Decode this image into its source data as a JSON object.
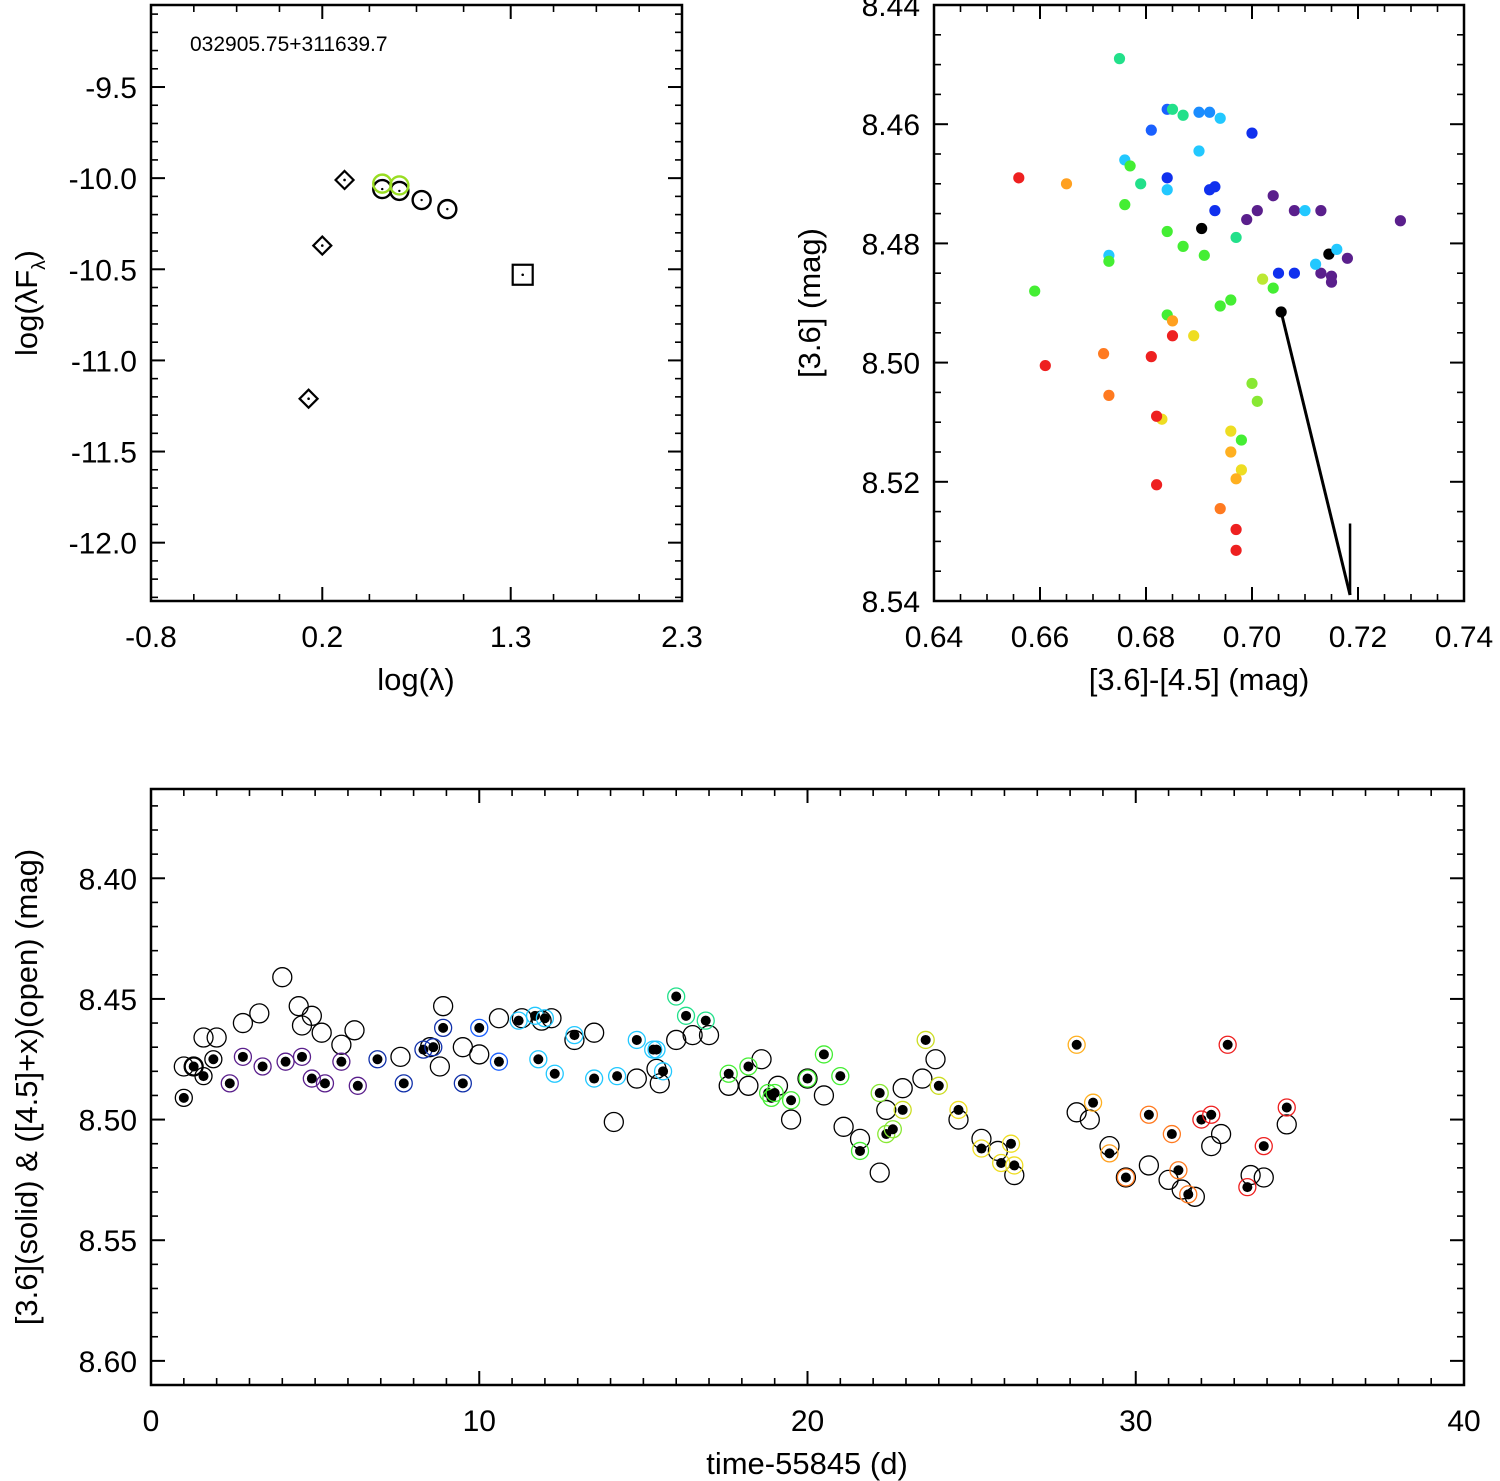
{
  "chart_data": [
    {
      "id": "sed",
      "type": "scatter",
      "title": "",
      "annotation": "032905.75+311639.7",
      "xlabel": "log(λ)",
      "ylabel_main": "log(λF",
      "ylabel_sub": "λ",
      "ylabel_close": ")",
      "xlim": [
        -0.8,
        2.3
      ],
      "ylim": [
        -12.32,
        -9.05
      ],
      "xticks": [
        -0.8,
        0.2,
        1.3,
        2.3
      ],
      "xtick_labels": [
        "-0.8",
        "0.2",
        "1.3",
        "2.3"
      ],
      "yticks": [
        -9.5,
        -10.0,
        -10.5,
        -11.0,
        -11.5,
        -12.0
      ],
      "ytick_labels": [
        "-9.5",
        "-10.0",
        "-10.5",
        "-11.0",
        "-11.5",
        "-12.0"
      ],
      "series": [
        {
          "name": "diamonds",
          "marker": "diamond",
          "x": [
            0.12,
            0.2,
            0.33
          ],
          "y": [
            -11.21,
            -10.37,
            -10.01
          ]
        },
        {
          "name": "open circles",
          "marker": "circle",
          "x": [
            0.55,
            0.65,
            0.78,
            0.93
          ],
          "y": [
            -10.06,
            -10.07,
            -10.12,
            -10.17
          ]
        },
        {
          "name": "green circles",
          "marker": "circle",
          "color": "#99dd22",
          "x": [
            0.55,
            0.65
          ],
          "y": [
            -10.03,
            -10.04
          ]
        },
        {
          "name": "square",
          "marker": "square",
          "x": [
            1.37
          ],
          "y": [
            -10.53
          ]
        }
      ]
    },
    {
      "id": "cmd",
      "type": "scatter",
      "title": "",
      "xlabel": "[3.6]-[4.5] (mag)",
      "ylabel": "[3.6] (mag)",
      "xlim": [
        0.64,
        0.74
      ],
      "ylim": [
        8.54,
        8.44
      ],
      "xticks": [
        0.64,
        0.66,
        0.68,
        0.7,
        0.72,
        0.74
      ],
      "xtick_labels": [
        "0.64",
        "0.66",
        "0.68",
        "0.70",
        "0.72",
        "0.74"
      ],
      "yticks": [
        8.44,
        8.46,
        8.48,
        8.5,
        8.52,
        8.54
      ],
      "ytick_labels": [
        "8.44",
        "8.46",
        "8.48",
        "8.50",
        "8.52",
        "8.54"
      ],
      "reddening_vector": {
        "from": [
          0.7055,
          8.4915
        ],
        "to": [
          0.7185,
          8.539
        ]
      },
      "reference_line": {
        "x": 0.7185,
        "y": [
          8.527,
          8.539
        ]
      },
      "points": [
        [
          0.7055,
          8.4915,
          "#000000"
        ],
        [
          0.6905,
          8.4775,
          "#000000"
        ],
        [
          0.7145,
          8.4818,
          "#000000"
        ],
        [
          0.728,
          8.4762,
          "#5a1f8c"
        ],
        [
          0.718,
          8.4825,
          "#5a1f8c"
        ],
        [
          0.715,
          8.4855,
          "#5a1f8c"
        ],
        [
          0.715,
          8.4865,
          "#5a1f8c"
        ],
        [
          0.708,
          8.4745,
          "#5a1f8c"
        ],
        [
          0.713,
          8.4745,
          "#5a1f8c"
        ],
        [
          0.704,
          8.472,
          "#5a1f8c"
        ],
        [
          0.701,
          8.4745,
          "#5a1f8c"
        ],
        [
          0.699,
          8.476,
          "#5a1f8c"
        ],
        [
          0.713,
          8.485,
          "#5a1f8c"
        ],
        [
          0.684,
          8.469,
          "#1030ee"
        ],
        [
          0.692,
          8.471,
          "#1030ee"
        ],
        [
          0.693,
          8.4705,
          "#1030ee"
        ],
        [
          0.693,
          8.4745,
          "#1030ee"
        ],
        [
          0.705,
          8.485,
          "#1030ee"
        ],
        [
          0.708,
          8.485,
          "#1030ee"
        ],
        [
          0.7,
          8.4615,
          "#1030ee"
        ],
        [
          0.681,
          8.461,
          "#1a60ff"
        ],
        [
          0.684,
          8.4575,
          "#1a60ff"
        ],
        [
          0.69,
          8.458,
          "#1a8cff"
        ],
        [
          0.692,
          8.458,
          "#1a8cff"
        ],
        [
          0.694,
          8.459,
          "#22c8ff"
        ],
        [
          0.69,
          8.4645,
          "#22c8ff"
        ],
        [
          0.684,
          8.471,
          "#22c8ff"
        ],
        [
          0.676,
          8.466,
          "#22c8ff"
        ],
        [
          0.673,
          8.482,
          "#22c8ff"
        ],
        [
          0.71,
          8.4745,
          "#22c8ff"
        ],
        [
          0.716,
          8.481,
          "#22c8ff"
        ],
        [
          0.712,
          8.4835,
          "#22c8ff"
        ],
        [
          0.675,
          8.449,
          "#22e08a"
        ],
        [
          0.685,
          8.4575,
          "#22e08a"
        ],
        [
          0.687,
          8.4585,
          "#22e08a"
        ],
        [
          0.679,
          8.47,
          "#22e08a"
        ],
        [
          0.697,
          8.479,
          "#22e08a"
        ],
        [
          0.677,
          8.467,
          "#44ee33"
        ],
        [
          0.676,
          8.4735,
          "#44ee33"
        ],
        [
          0.684,
          8.478,
          "#44ee33"
        ],
        [
          0.687,
          8.4805,
          "#44ee33"
        ],
        [
          0.673,
          8.483,
          "#44ee33"
        ],
        [
          0.691,
          8.482,
          "#44ee33"
        ],
        [
          0.659,
          8.488,
          "#44ee33"
        ],
        [
          0.696,
          8.4895,
          "#44ee33"
        ],
        [
          0.694,
          8.4905,
          "#44ee33"
        ],
        [
          0.684,
          8.492,
          "#44ee33"
        ],
        [
          0.704,
          8.4875,
          "#44ee33"
        ],
        [
          0.698,
          8.513,
          "#44ee33"
        ],
        [
          0.701,
          8.5065,
          "#88e833"
        ],
        [
          0.7,
          8.5035,
          "#88e833"
        ],
        [
          0.702,
          8.486,
          "#bbe833"
        ],
        [
          0.689,
          8.4955,
          "#eedd22"
        ],
        [
          0.683,
          8.5095,
          "#eedd22"
        ],
        [
          0.696,
          8.5115,
          "#eedd22"
        ],
        [
          0.698,
          8.518,
          "#eedd22"
        ],
        [
          0.696,
          8.515,
          "#ffb020"
        ],
        [
          0.697,
          8.5195,
          "#ffb020"
        ],
        [
          0.665,
          8.47,
          "#ffa020"
        ],
        [
          0.685,
          8.493,
          "#ffa020"
        ],
        [
          0.673,
          8.5055,
          "#ff7a20"
        ],
        [
          0.672,
          8.4985,
          "#ff7a20"
        ],
        [
          0.694,
          8.5245,
          "#ff7a20"
        ],
        [
          0.656,
          8.469,
          "#ee2020"
        ],
        [
          0.661,
          8.5005,
          "#ee2020"
        ],
        [
          0.685,
          8.4955,
          "#ee2020"
        ],
        [
          0.681,
          8.499,
          "#ee2020"
        ],
        [
          0.682,
          8.509,
          "#ee2020"
        ],
        [
          0.682,
          8.5205,
          "#ee2020"
        ],
        [
          0.697,
          8.528,
          "#ee2020"
        ],
        [
          0.697,
          8.5315,
          "#ee2020"
        ]
      ]
    },
    {
      "id": "timeseries",
      "type": "scatter",
      "title": "",
      "xlabel": "time-55845 (d)",
      "ylabel": "[3.6](solid) & ([4.5]+x)(open) (mag)",
      "xlim": [
        0,
        40
      ],
      "ylim": [
        8.61,
        8.363
      ],
      "xticks": [
        0,
        10,
        20,
        30,
        40
      ],
      "xtick_labels": [
        "0",
        "10",
        "20",
        "30",
        "40"
      ],
      "yticks": [
        8.4,
        8.45,
        8.5,
        8.55,
        8.6
      ],
      "ytick_labels": [
        "8.40",
        "8.45",
        "8.50",
        "8.55",
        "8.60"
      ],
      "solid_36": [
        [
          1.0,
          8.491,
          "#000000"
        ],
        [
          1.3,
          8.478,
          "#000000"
        ],
        [
          1.6,
          8.482,
          "#000000"
        ],
        [
          1.9,
          8.475,
          "#000000"
        ],
        [
          2.4,
          8.485,
          "#5a1f8c"
        ],
        [
          2.8,
          8.474,
          "#5a1f8c"
        ],
        [
          3.4,
          8.478,
          "#5a1f8c"
        ],
        [
          4.1,
          8.476,
          "#5a1f8c"
        ],
        [
          4.6,
          8.474,
          "#5a1f8c"
        ],
        [
          4.9,
          8.483,
          "#5a1f8c"
        ],
        [
          5.3,
          8.485,
          "#5a1f8c"
        ],
        [
          5.8,
          8.476,
          "#5a1f8c"
        ],
        [
          6.3,
          8.486,
          "#5a1f8c"
        ],
        [
          6.9,
          8.475,
          "#1030aa"
        ],
        [
          7.7,
          8.485,
          "#1030aa"
        ],
        [
          8.3,
          8.471,
          "#1030aa"
        ],
        [
          8.6,
          8.47,
          "#1030aa"
        ],
        [
          8.9,
          8.462,
          "#1030aa"
        ],
        [
          9.5,
          8.485,
          "#1030aa"
        ],
        [
          10.0,
          8.462,
          "#1a60ff"
        ],
        [
          10.6,
          8.476,
          "#1a60ff"
        ],
        [
          11.2,
          8.459,
          "#22c8ff"
        ],
        [
          11.7,
          8.457,
          "#22c8ff"
        ],
        [
          11.8,
          8.475,
          "#22c8ff"
        ],
        [
          12.0,
          8.458,
          "#22c8ff"
        ],
        [
          12.3,
          8.481,
          "#22c8ff"
        ],
        [
          12.9,
          8.465,
          "#22c8ff"
        ],
        [
          13.5,
          8.483,
          "#22c8ff"
        ],
        [
          14.2,
          8.482,
          "#22c8ff"
        ],
        [
          14.8,
          8.467,
          "#22c8ff"
        ],
        [
          15.3,
          8.471,
          "#22c8ff"
        ],
        [
          15.4,
          8.471,
          "#22c8ff"
        ],
        [
          15.6,
          8.48,
          "#22c8ff"
        ],
        [
          16.0,
          8.449,
          "#22e08a"
        ],
        [
          16.3,
          8.457,
          "#22e08a"
        ],
        [
          16.9,
          8.459,
          "#22e08a"
        ],
        [
          17.6,
          8.481,
          "#44ee33"
        ],
        [
          18.2,
          8.478,
          "#44ee33"
        ],
        [
          18.8,
          8.489,
          "#44ee33"
        ],
        [
          18.9,
          8.491,
          "#44ee33"
        ],
        [
          19.0,
          8.489,
          "#44ee33"
        ],
        [
          19.5,
          8.492,
          "#44ee33"
        ],
        [
          20.0,
          8.483,
          "#44ee33"
        ],
        [
          20.5,
          8.473,
          "#44ee33"
        ],
        [
          21.0,
          8.482,
          "#44ee33"
        ],
        [
          21.6,
          8.513,
          "#44ee33"
        ],
        [
          22.2,
          8.489,
          "#88e833"
        ],
        [
          22.4,
          8.506,
          "#88e833"
        ],
        [
          22.6,
          8.504,
          "#88e833"
        ],
        [
          22.9,
          8.496,
          "#ccdd22"
        ],
        [
          23.6,
          8.467,
          "#ccdd22"
        ],
        [
          24.0,
          8.486,
          "#ccdd22"
        ],
        [
          24.6,
          8.496,
          "#eedd22"
        ],
        [
          25.3,
          8.512,
          "#eedd22"
        ],
        [
          25.9,
          8.518,
          "#eedd22"
        ],
        [
          26.2,
          8.51,
          "#eedd22"
        ],
        [
          26.3,
          8.519,
          "#eedd22"
        ],
        [
          28.2,
          8.469,
          "#ffb020"
        ],
        [
          28.7,
          8.493,
          "#ffb020"
        ],
        [
          29.2,
          8.514,
          "#ffa020"
        ],
        [
          29.7,
          8.524,
          "#ff7a20"
        ],
        [
          30.4,
          8.498,
          "#ff7a20"
        ],
        [
          31.1,
          8.506,
          "#ff7a20"
        ],
        [
          31.3,
          8.521,
          "#ff7a20"
        ],
        [
          31.6,
          8.531,
          "#ff7a20"
        ],
        [
          32.0,
          8.5,
          "#ee2020"
        ],
        [
          32.3,
          8.498,
          "#ee2020"
        ],
        [
          32.8,
          8.469,
          "#ee2020"
        ],
        [
          33.4,
          8.528,
          "#ee2020"
        ],
        [
          33.9,
          8.511,
          "#ee2020"
        ],
        [
          34.6,
          8.495,
          "#ee2020"
        ]
      ],
      "open_45": [
        [
          1.0,
          8.478
        ],
        [
          1.3,
          8.478
        ],
        [
          1.6,
          8.466
        ],
        [
          2.0,
          8.466
        ],
        [
          2.8,
          8.46
        ],
        [
          3.3,
          8.456
        ],
        [
          4.0,
          8.441
        ],
        [
          4.5,
          8.453
        ],
        [
          4.6,
          8.461
        ],
        [
          4.9,
          8.457
        ],
        [
          5.2,
          8.464
        ],
        [
          5.8,
          8.469
        ],
        [
          6.2,
          8.463
        ],
        [
          7.6,
          8.474
        ],
        [
          8.5,
          8.47
        ],
        [
          8.9,
          8.453
        ],
        [
          8.8,
          8.478
        ],
        [
          9.5,
          8.47
        ],
        [
          10.0,
          8.473
        ],
        [
          10.6,
          8.458
        ],
        [
          11.3,
          8.458
        ],
        [
          11.9,
          8.459
        ],
        [
          12.2,
          8.458
        ],
        [
          12.9,
          8.467
        ],
        [
          13.5,
          8.464
        ],
        [
          14.1,
          8.501
        ],
        [
          14.8,
          8.483
        ],
        [
          15.4,
          8.479
        ],
        [
          15.5,
          8.485
        ],
        [
          16.0,
          8.467
        ],
        [
          16.5,
          8.465
        ],
        [
          17.0,
          8.465
        ],
        [
          17.6,
          8.486
        ],
        [
          18.2,
          8.486
        ],
        [
          18.6,
          8.475
        ],
        [
          19.1,
          8.486
        ],
        [
          19.5,
          8.5
        ],
        [
          20.0,
          8.483
        ],
        [
          20.5,
          8.49
        ],
        [
          21.1,
          8.503
        ],
        [
          21.6,
          8.508
        ],
        [
          22.2,
          8.522
        ],
        [
          22.4,
          8.496
        ],
        [
          22.9,
          8.487
        ],
        [
          23.5,
          8.483
        ],
        [
          23.9,
          8.475
        ],
        [
          24.6,
          8.5
        ],
        [
          25.3,
          8.508
        ],
        [
          25.8,
          8.513
        ],
        [
          26.3,
          8.523
        ],
        [
          28.2,
          8.497
        ],
        [
          28.6,
          8.5
        ],
        [
          29.2,
          8.511
        ],
        [
          29.7,
          8.524
        ],
        [
          30.4,
          8.519
        ],
        [
          31.0,
          8.525
        ],
        [
          31.4,
          8.529
        ],
        [
          31.8,
          8.532
        ],
        [
          32.3,
          8.511
        ],
        [
          32.6,
          8.506
        ],
        [
          33.5,
          8.523
        ],
        [
          33.9,
          8.524
        ],
        [
          34.6,
          8.502
        ]
      ]
    }
  ]
}
